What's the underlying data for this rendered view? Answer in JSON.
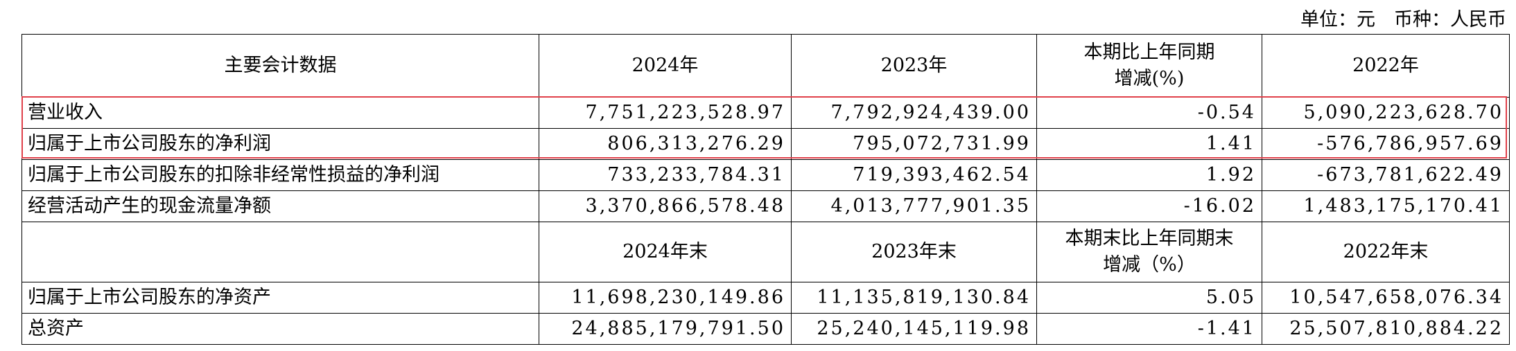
{
  "header": {
    "unit_note": "单位：元　币种：人民币"
  },
  "table": {
    "header1": [
      "主要会计数据",
      "2024年",
      "2023年",
      "本期比上年同期\n增减(%)",
      "2022年"
    ],
    "rows1": [
      [
        "营业收入",
        "7,751,223,528.97",
        "7,792,924,439.00",
        "-0.54",
        "5,090,223,628.70"
      ],
      [
        "归属于上市公司股东的净利润",
        "806,313,276.29",
        "795,072,731.99",
        "1.41",
        "-576,786,957.69"
      ],
      [
        "归属于上市公司股东的扣除非经常性损益的净利润",
        "733,233,784.31",
        "719,393,462.54",
        "1.92",
        "-673,781,622.49"
      ],
      [
        "经营活动产生的现金流量净额",
        "3,370,866,578.48",
        "4,013,777,901.35",
        "-16.02",
        "1,483,175,170.41"
      ]
    ],
    "header2": [
      "",
      "2024年末",
      "2023年末",
      "本期末比上年同期末\n增减（%）",
      "2022年末"
    ],
    "rows2": [
      [
        "归属于上市公司股东的净资产",
        "11,698,230,149.86",
        "11,135,819,130.84",
        "5.05",
        "10,547,658,076.34"
      ],
      [
        "总资产",
        "24,885,179,791.50",
        "25,240,145,119.98",
        "-1.41",
        "25,507,810,884.22"
      ]
    ]
  }
}
